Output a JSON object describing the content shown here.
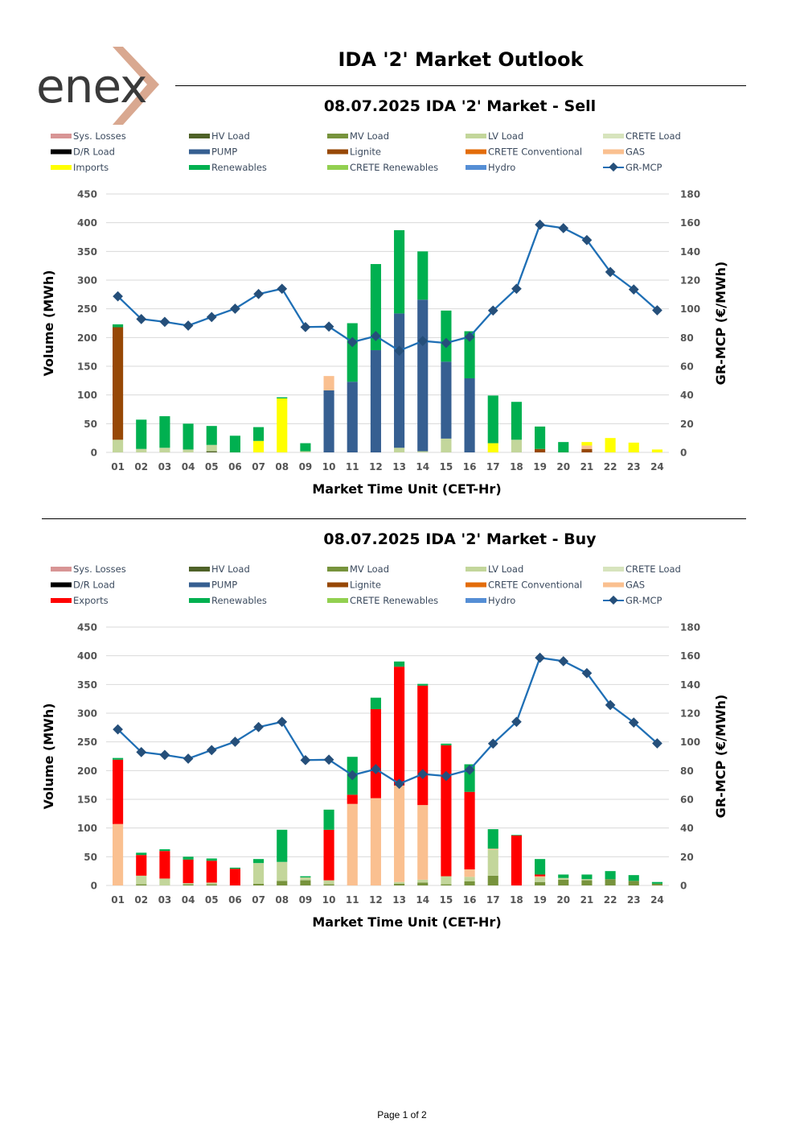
{
  "header": {
    "logo_text": "enex",
    "title": "IDA '2' Market Outlook"
  },
  "footer": {
    "page_label": "Page 1 of 2"
  },
  "colors": {
    "sys_losses": "#d89595",
    "hv_load": "#4f6228",
    "mv_load": "#77933c",
    "lv_load": "#c3d69b",
    "crete_load": "#d7e4bd",
    "dr_load": "#000000",
    "pump": "#365f91",
    "lignite": "#974806",
    "crete_conv": "#e36c0a",
    "gas": "#fac090",
    "imports": "#ffff00",
    "exports": "#ff0000",
    "renewables": "#00b050",
    "crete_ren": "#92d050",
    "hydro": "#558ed5",
    "mcp": "#1f6fb5",
    "mcp_marker": "#254f7a"
  },
  "chart_data": [
    {
      "type": "bar",
      "stacked": true,
      "title": "08.07.2025  IDA '2' Market - Sell",
      "xlabel": "Market Time Unit (CET-Hr)",
      "ylabel": "Volume (MWh)",
      "y2label": "GR-MCP (€/MWh)",
      "ylim": [
        0,
        450
      ],
      "y2lim": [
        0,
        180
      ],
      "yticks": [
        "0",
        "50",
        "100",
        "150",
        "200",
        "250",
        "300",
        "350",
        "400",
        "450"
      ],
      "y2ticks": [
        "0",
        "20",
        "40",
        "60",
        "80",
        "100",
        "120",
        "140",
        "160",
        "180"
      ],
      "categories": [
        "01",
        "02",
        "03",
        "04",
        "05",
        "06",
        "07",
        "08",
        "09",
        "10",
        "11",
        "12",
        "13",
        "14",
        "15",
        "16",
        "17",
        "18",
        "19",
        "20",
        "21",
        "22",
        "23",
        "24"
      ],
      "legend": [
        {
          "label": "Sys. Losses",
          "color": "#d89595",
          "kind": "bar"
        },
        {
          "label": "HV Load",
          "color": "#4f6228",
          "kind": "bar"
        },
        {
          "label": "MV Load",
          "color": "#77933c",
          "kind": "bar"
        },
        {
          "label": "LV Load",
          "color": "#c3d69b",
          "kind": "bar"
        },
        {
          "label": "CRETE Load",
          "color": "#d7e4bd",
          "kind": "bar"
        },
        {
          "label": "D/R Load",
          "color": "#000000",
          "kind": "bar"
        },
        {
          "label": "PUMP",
          "color": "#365f91",
          "kind": "bar"
        },
        {
          "label": "Lignite",
          "color": "#974806",
          "kind": "bar"
        },
        {
          "label": "CRETE Conventional",
          "color": "#e36c0a",
          "kind": "bar"
        },
        {
          "label": "GAS",
          "color": "#fac090",
          "kind": "bar"
        },
        {
          "label": "Imports",
          "color": "#ffff00",
          "kind": "bar"
        },
        {
          "label": "Renewables",
          "color": "#00b050",
          "kind": "bar"
        },
        {
          "label": "CRETE Renewables",
          "color": "#92d050",
          "kind": "bar"
        },
        {
          "label": "Hydro",
          "color": "#558ed5",
          "kind": "bar"
        },
        {
          "label": "GR-MCP",
          "color": "#1f6fb5",
          "kind": "line"
        }
      ],
      "series": [
        {
          "name": "HV Load",
          "color": "#4f6228",
          "values": [
            0,
            0,
            0,
            0,
            2,
            0,
            0,
            0,
            0,
            0,
            0,
            0,
            0,
            0,
            0,
            0,
            0,
            0,
            0,
            0,
            0,
            0,
            0,
            0
          ]
        },
        {
          "name": "MV Load",
          "color": "#77933c",
          "values": [
            0,
            0,
            0,
            0,
            0,
            0,
            0,
            0,
            0,
            0,
            0,
            0,
            0,
            0,
            0,
            0,
            0,
            0,
            0,
            0,
            0,
            0,
            0,
            0
          ]
        },
        {
          "name": "LV Load",
          "color": "#c3d69b",
          "values": [
            22,
            6,
            8,
            5,
            11,
            0,
            0,
            0,
            2,
            0,
            0,
            0,
            8,
            2,
            24,
            0,
            0,
            22,
            0,
            0,
            0,
            0,
            0,
            0
          ]
        },
        {
          "name": "Lignite",
          "color": "#974806",
          "values": [
            196,
            0,
            0,
            0,
            0,
            0,
            0,
            0,
            0,
            0,
            0,
            0,
            0,
            0,
            0,
            0,
            0,
            0,
            6,
            0,
            6,
            0,
            0,
            0
          ]
        },
        {
          "name": "PUMP",
          "color": "#365f91",
          "values": [
            0,
            0,
            0,
            0,
            0,
            0,
            0,
            0,
            0,
            108,
            123,
            178,
            234,
            264,
            134,
            129,
            0,
            0,
            0,
            0,
            0,
            0,
            0,
            0
          ]
        },
        {
          "name": "GAS",
          "color": "#fac090",
          "values": [
            0,
            0,
            0,
            0,
            0,
            0,
            0,
            0,
            0,
            25,
            0,
            0,
            0,
            0,
            0,
            0,
            0,
            0,
            0,
            0,
            6,
            0,
            0,
            0
          ]
        },
        {
          "name": "Imports",
          "color": "#ffff00",
          "values": [
            0,
            0,
            0,
            0,
            0,
            0,
            20,
            94,
            0,
            0,
            0,
            0,
            0,
            0,
            0,
            0,
            16,
            0,
            0,
            0,
            6,
            25,
            17,
            5
          ]
        },
        {
          "name": "Renewables",
          "color": "#00b050",
          "values": [
            5,
            51,
            55,
            45,
            33,
            29,
            24,
            2,
            14,
            0,
            102,
            150,
            145,
            84,
            89,
            82,
            83,
            66,
            39,
            18,
            0,
            0,
            0,
            0
          ]
        }
      ],
      "mcp": [
        108.7,
        92.9,
        90.9,
        88.3,
        94.3,
        100.1,
        110.3,
        114.0,
        87.3,
        87.6,
        76.8,
        81.0,
        70.8,
        77.6,
        76.2,
        80.5,
        98.8,
        114.0,
        158.6,
        156.2,
        147.9,
        125.7,
        113.5,
        99.0
      ]
    },
    {
      "type": "bar",
      "stacked": true,
      "title": "08.07.2025  IDA '2' Market - Buy",
      "xlabel": "Market Time Unit (CET-Hr)",
      "ylabel": "Volume (MWh)",
      "y2label": "GR-MCP (€/MWh)",
      "ylim": [
        0,
        450
      ],
      "y2lim": [
        0,
        180
      ],
      "yticks": [
        "0",
        "50",
        "100",
        "150",
        "200",
        "250",
        "300",
        "350",
        "400",
        "450"
      ],
      "y2ticks": [
        "0",
        "20",
        "40",
        "60",
        "80",
        "100",
        "120",
        "140",
        "160",
        "180"
      ],
      "categories": [
        "01",
        "02",
        "03",
        "04",
        "05",
        "06",
        "07",
        "08",
        "09",
        "10",
        "11",
        "12",
        "13",
        "14",
        "15",
        "16",
        "17",
        "18",
        "19",
        "20",
        "21",
        "22",
        "23",
        "24"
      ],
      "legend": [
        {
          "label": "Sys. Losses",
          "color": "#d89595",
          "kind": "bar"
        },
        {
          "label": "HV Load",
          "color": "#4f6228",
          "kind": "bar"
        },
        {
          "label": "MV Load",
          "color": "#77933c",
          "kind": "bar"
        },
        {
          "label": "LV Load",
          "color": "#c3d69b",
          "kind": "bar"
        },
        {
          "label": "CRETE Load",
          "color": "#d7e4bd",
          "kind": "bar"
        },
        {
          "label": "D/R Load",
          "color": "#000000",
          "kind": "bar"
        },
        {
          "label": "PUMP",
          "color": "#365f91",
          "kind": "bar"
        },
        {
          "label": "Lignite",
          "color": "#974806",
          "kind": "bar"
        },
        {
          "label": "CRETE Conventional",
          "color": "#e36c0a",
          "kind": "bar"
        },
        {
          "label": "GAS",
          "color": "#fac090",
          "kind": "bar"
        },
        {
          "label": "Exports",
          "color": "#ff0000",
          "kind": "bar"
        },
        {
          "label": "Renewables",
          "color": "#00b050",
          "kind": "bar"
        },
        {
          "label": "CRETE Renewables",
          "color": "#92d050",
          "kind": "bar"
        },
        {
          "label": "Hydro",
          "color": "#558ed5",
          "kind": "bar"
        },
        {
          "label": "GR-MCP",
          "color": "#1f6fb5",
          "kind": "line"
        }
      ],
      "series": [
        {
          "name": "HV Load",
          "color": "#4f6228",
          "values": [
            0,
            0,
            0,
            0,
            0,
            0,
            0,
            0,
            0,
            0,
            0,
            0,
            0,
            0,
            0,
            0,
            0,
            0,
            0,
            0,
            0,
            0,
            0,
            0
          ]
        },
        {
          "name": "MV Load",
          "color": "#77933c",
          "values": [
            0,
            2,
            0,
            2,
            2,
            0,
            3,
            8,
            9,
            2,
            0,
            0,
            3,
            5,
            2,
            7,
            17,
            0,
            6,
            10,
            9,
            11,
            8,
            3
          ]
        },
        {
          "name": "LV Load",
          "color": "#c3d69b",
          "values": [
            0,
            15,
            12,
            2,
            3,
            0,
            36,
            33,
            5,
            7,
            0,
            0,
            3,
            5,
            14,
            8,
            45,
            0,
            8,
            3,
            2,
            0,
            0,
            0
          ]
        },
        {
          "name": "GAS",
          "color": "#fac090",
          "values": [
            107,
            0,
            0,
            0,
            0,
            0,
            0,
            0,
            0,
            0,
            142,
            152,
            168,
            130,
            0,
            13,
            2,
            0,
            2,
            0,
            0,
            0,
            0,
            0
          ]
        },
        {
          "name": "Exports",
          "color": "#ff0000",
          "values": [
            112,
            36,
            48,
            41,
            38,
            29,
            0,
            0,
            0,
            88,
            16,
            155,
            207,
            208,
            228,
            135,
            0,
            87,
            3,
            0,
            0,
            0,
            0,
            0
          ]
        },
        {
          "name": "Renewables",
          "color": "#00b050",
          "values": [
            3,
            4,
            3,
            5,
            4,
            2,
            7,
            56,
            2,
            35,
            66,
            20,
            9,
            3,
            3,
            48,
            34,
            1,
            27,
            6,
            8,
            14,
            10,
            3
          ]
        }
      ],
      "mcp": [
        108.7,
        92.9,
        90.9,
        88.3,
        94.3,
        100.1,
        110.3,
        114.0,
        87.3,
        87.6,
        76.8,
        81.0,
        70.8,
        77.6,
        76.2,
        80.5,
        98.8,
        114.0,
        158.6,
        156.2,
        147.9,
        125.7,
        113.5,
        99.0
      ]
    }
  ]
}
